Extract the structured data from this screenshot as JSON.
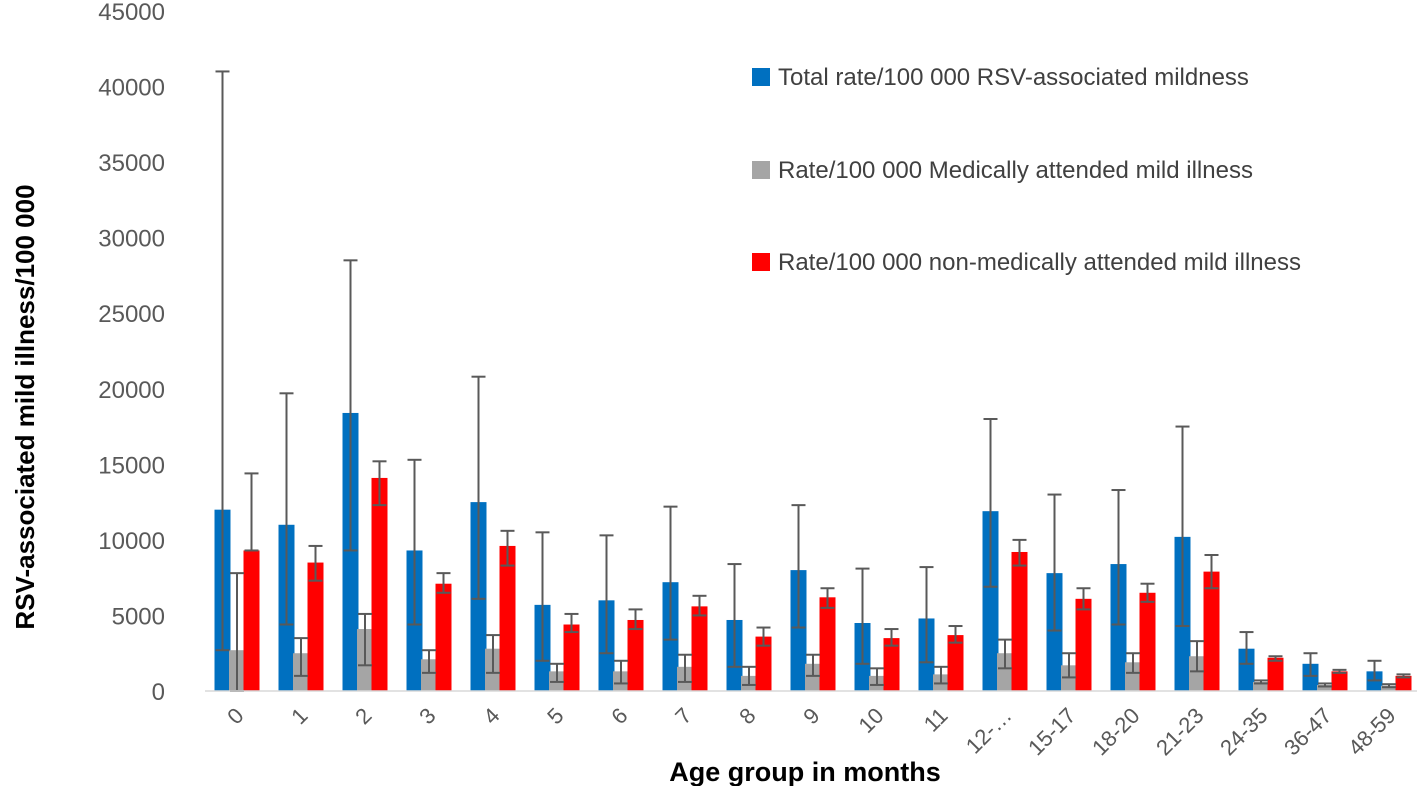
{
  "chart_data": {
    "type": "bar",
    "xlabel": "Age group in months",
    "ylabel": "RSV-associated  mild illness/100 000",
    "ylim": [
      0,
      45000
    ],
    "yticks": [
      0,
      5000,
      10000,
      15000,
      20000,
      25000,
      30000,
      35000,
      40000,
      45000
    ],
    "legend_position": "top-right",
    "categories": [
      "0",
      "1",
      "2",
      "3",
      "4",
      "5",
      "6",
      "7",
      "8",
      "9",
      "10",
      "11",
      "12-…",
      "15-17",
      "18-20",
      "21-23",
      "24-35",
      "36-47",
      "48-59"
    ],
    "series": [
      {
        "name": "Total rate/100 000 RSV-associated mildness",
        "color": "#0070C0",
        "values": [
          12000,
          11000,
          18400,
          9300,
          12500,
          5700,
          6000,
          7200,
          4700,
          8000,
          4500,
          4800,
          11900,
          7800,
          8400,
          10200,
          2800,
          1800,
          1300
        ],
        "err_low": [
          2700,
          4400,
          9300,
          4400,
          6100,
          2000,
          2500,
          3400,
          1600,
          4200,
          1800,
          1900,
          6900,
          4000,
          4400,
          4300,
          1800,
          1000,
          700
        ],
        "err_high": [
          41000,
          19700,
          28500,
          15300,
          20800,
          10500,
          10300,
          12200,
          8400,
          12300,
          8100,
          8200,
          18000,
          13000,
          13300,
          17500,
          3900,
          2500,
          2000
        ]
      },
      {
        "name": "Rate/100 000 Medically attended mild illness",
        "color": "#A5A5A5",
        "values": [
          2700,
          2500,
          4100,
          2100,
          2800,
          1300,
          1300,
          1600,
          1000,
          1800,
          1000,
          1100,
          2500,
          1700,
          1900,
          2300,
          600,
          400,
          350
        ],
        "err_low": [
          0,
          1000,
          1700,
          1200,
          1200,
          600,
          500,
          600,
          400,
          1000,
          400,
          500,
          1500,
          900,
          1200,
          1300,
          500,
          300,
          250
        ],
        "err_high": [
          7800,
          3500,
          5100,
          2700,
          3700,
          1800,
          2000,
          2400,
          1600,
          2400,
          1500,
          1600,
          3400,
          2500,
          2500,
          3300,
          700,
          500,
          450
        ]
      },
      {
        "name": "Rate/100 000 non-medically attended mild illness",
        "color": "#FF0000",
        "values": [
          9300,
          8500,
          14100,
          7100,
          9600,
          4400,
          4700,
          5600,
          3600,
          6200,
          3500,
          3700,
          9200,
          6100,
          6500,
          7900,
          2200,
          1300,
          1000
        ],
        "err_low": [
          9300,
          7300,
          12300,
          6500,
          8300,
          3900,
          4100,
          5000,
          3000,
          5500,
          3000,
          3200,
          8300,
          5400,
          5900,
          6800,
          2000,
          1200,
          900
        ],
        "err_high": [
          14400,
          9600,
          15200,
          7800,
          10600,
          5100,
          5400,
          6300,
          4200,
          6800,
          4100,
          4300,
          10000,
          6800,
          7100,
          9000,
          2300,
          1400,
          1100
        ]
      }
    ]
  }
}
